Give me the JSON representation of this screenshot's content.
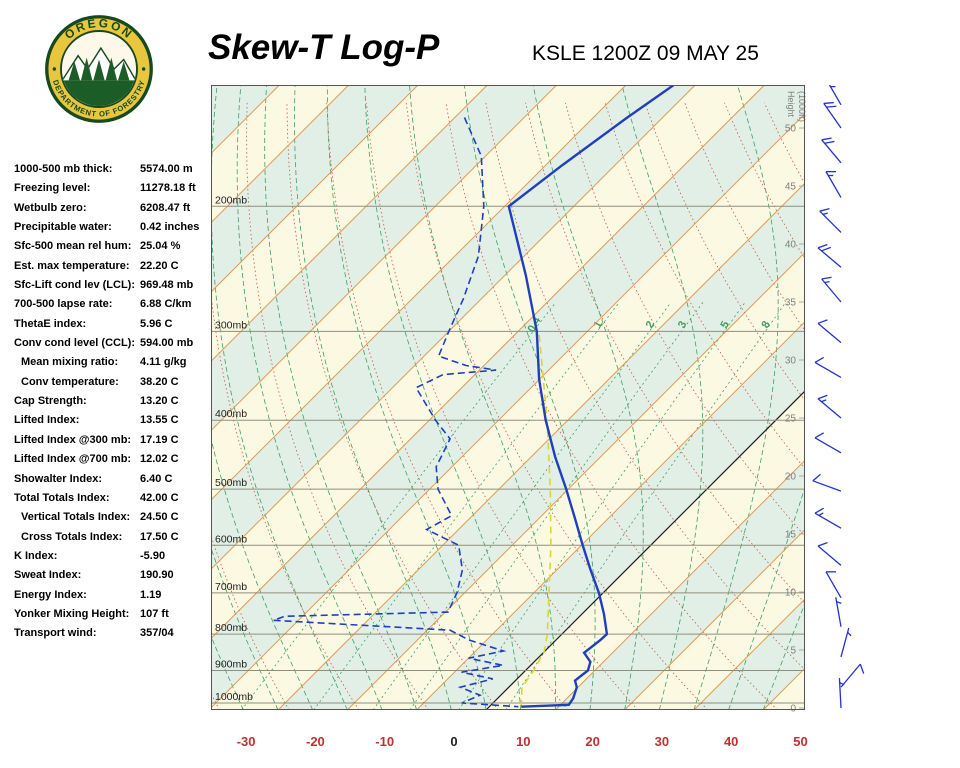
{
  "header": {
    "title": "Skew-T Log-P",
    "station_line": "KSLE 1200Z 09 MAY 25",
    "logo": {
      "top_text": "OREGON",
      "bottom_text": "DEPARTMENT OF FORESTRY"
    }
  },
  "indices": [
    {
      "label": "1000-500 mb thick:",
      "value": "5574.00 m",
      "indent": false
    },
    {
      "label": "Freezing level:",
      "value": "11278.18 ft",
      "indent": false
    },
    {
      "label": "Wetbulb zero:",
      "value": "6208.47 ft",
      "indent": false
    },
    {
      "label": "Precipitable water:",
      "value": "0.42 inches",
      "indent": false
    },
    {
      "label": "Sfc-500 mean rel hum:",
      "value": "25.04 %",
      "indent": false
    },
    {
      "label": "Est. max temperature:",
      "value": "22.20 C",
      "indent": false
    },
    {
      "label": "Sfc-Lift cond lev (LCL):",
      "value": "969.48 mb",
      "indent": false
    },
    {
      "label": "700-500 lapse rate:",
      "value": "6.88 C/km",
      "indent": false
    },
    {
      "label": "ThetaE index:",
      "value": "5.96 C",
      "indent": false
    },
    {
      "label": "Conv cond level (CCL):",
      "value": "594.00 mb",
      "indent": false
    },
    {
      "label": "Mean mixing ratio:",
      "value": "4.11 g/kg",
      "indent": true
    },
    {
      "label": "Conv temperature:",
      "value": "38.20 C",
      "indent": true
    },
    {
      "label": "Cap Strength:",
      "value": "13.20 C",
      "indent": false
    },
    {
      "label": "Lifted Index:",
      "value": "13.55 C",
      "indent": false
    },
    {
      "label": "Lifted Index @300 mb:",
      "value": "17.19 C",
      "indent": false
    },
    {
      "label": "Lifted Index @700 mb:",
      "value": "12.02 C",
      "indent": false
    },
    {
      "label": "Showalter Index:",
      "value": "6.40 C",
      "indent": false
    },
    {
      "label": "Total Totals Index:",
      "value": "42.00 C",
      "indent": false
    },
    {
      "label": "Vertical Totals Index:",
      "value": "24.50 C",
      "indent": true
    },
    {
      "label": "Cross Totals Index:",
      "value": "17.50 C",
      "indent": true
    },
    {
      "label": "K Index:",
      "value": "-5.90",
      "indent": false
    },
    {
      "label": "Sweat Index:",
      "value": "190.90",
      "indent": false
    },
    {
      "label": "Energy Index:",
      "value": "1.19",
      "indent": false
    },
    {
      "label": "Yonker Mixing Height:",
      "value": "107 ft",
      "indent": false
    },
    {
      "label": "Transport wind:",
      "value": "357/04",
      "indent": false
    }
  ],
  "chart_data": {
    "type": "skew-t",
    "title": "Skew-T Log-P",
    "station": "KSLE 1200Z 09 MAY 25",
    "pressure_range": [
      135,
      1023
    ],
    "pressure_axis": {
      "unit": "mb",
      "labels": [
        200,
        300,
        400,
        500,
        600,
        700,
        800,
        900,
        1000
      ]
    },
    "temp_axis": {
      "unit": "C",
      "labels": [
        -30,
        -20,
        -10,
        0,
        10,
        20,
        30,
        40,
        50
      ]
    },
    "height_axis": {
      "unit": "1000 ft",
      "title_line1": "Height",
      "title_line2": "(1000ft)",
      "labels": [
        0,
        5,
        10,
        15,
        20,
        25,
        30,
        35,
        40,
        45,
        50
      ]
    },
    "mixing_ratio_labels": [
      "0.4",
      "1",
      "2",
      "3",
      "5",
      "8"
    ],
    "temperature_profile": [
      [
        135,
        -63.1
      ],
      [
        150,
        -65.1
      ],
      [
        175,
        -67.6
      ],
      [
        200,
        -69.4
      ],
      [
        250,
        -57.0
      ],
      [
        300,
        -47.3
      ],
      [
        350,
        -40.1
      ],
      [
        400,
        -33.2
      ],
      [
        450,
        -26.6
      ],
      [
        500,
        -20.3
      ],
      [
        550,
        -14.8
      ],
      [
        600,
        -9.8
      ],
      [
        650,
        -5.1
      ],
      [
        700,
        -0.6
      ],
      [
        750,
        3.2
      ],
      [
        800,
        6.5
      ],
      [
        815,
        6.4
      ],
      [
        850,
        5.9
      ],
      [
        875,
        8.1
      ],
      [
        900,
        9.0
      ],
      [
        930,
        8.6
      ],
      [
        950,
        9.8
      ],
      [
        985,
        10.9
      ],
      [
        1006,
        11.2
      ],
      [
        1012,
        4.6
      ]
    ],
    "dewpoint_profile": [
      [
        150,
        -88.6
      ],
      [
        170,
        -80.6
      ],
      [
        200,
        -73.0
      ],
      [
        235,
        -66.6
      ],
      [
        270,
        -62.6
      ],
      [
        300,
        -60.0
      ],
      [
        325,
        -57.9
      ],
      [
        335,
        -52.6
      ],
      [
        340,
        -47.6
      ],
      [
        345,
        -54.6
      ],
      [
        360,
        -56.6
      ],
      [
        400,
        -49.1
      ],
      [
        425,
        -44.3
      ],
      [
        465,
        -42.3
      ],
      [
        500,
        -38.8
      ],
      [
        545,
        -33.0
      ],
      [
        570,
        -34.6
      ],
      [
        600,
        -27.7
      ],
      [
        650,
        -23.6
      ],
      [
        700,
        -21.1
      ],
      [
        745,
        -19.6
      ],
      [
        755,
        -42.6
      ],
      [
        765,
        -43.6
      ],
      [
        790,
        -16.7
      ],
      [
        815,
        -12.6
      ],
      [
        845,
        -6.0
      ],
      [
        865,
        -10.0
      ],
      [
        885,
        -4.0
      ],
      [
        905,
        -9.0
      ],
      [
        925,
        -3.5
      ],
      [
        950,
        -7.0
      ],
      [
        975,
        -3.0
      ],
      [
        1000,
        -4.5
      ],
      [
        1012,
        4.2
      ]
    ],
    "parcel_profile": [
      [
        1012,
        4.6
      ],
      [
        950,
        1.9
      ],
      [
        900,
        1.2
      ],
      [
        845,
        -0.1
      ],
      [
        800,
        -2.1
      ],
      [
        700,
        -7.8
      ],
      [
        600,
        -14.4
      ],
      [
        500,
        -22.6
      ],
      [
        400,
        -33.0
      ],
      [
        300,
        -47.0
      ]
    ],
    "wind_barbs": [
      {
        "alt_kft": 52.0,
        "dir": 330,
        "spd": 25
      },
      {
        "alt_kft": 50.0,
        "dir": 325,
        "spd": 20
      },
      {
        "alt_kft": 47.0,
        "dir": 320,
        "spd": 20
      },
      {
        "alt_kft": 44.0,
        "dir": 330,
        "spd": 15
      },
      {
        "alt_kft": 41.0,
        "dir": 315,
        "spd": 15
      },
      {
        "alt_kft": 38.0,
        "dir": 310,
        "spd": 20
      },
      {
        "alt_kft": 35.0,
        "dir": 320,
        "spd": 15
      },
      {
        "alt_kft": 31.5,
        "dir": 310,
        "spd": 10
      },
      {
        "alt_kft": 28.5,
        "dir": 300,
        "spd": 10
      },
      {
        "alt_kft": 25.0,
        "dir": 310,
        "spd": 15
      },
      {
        "alt_kft": 22.0,
        "dir": 300,
        "spd": 10
      },
      {
        "alt_kft": 18.7,
        "dir": 290,
        "spd": 10
      },
      {
        "alt_kft": 15.5,
        "dir": 300,
        "spd": 15
      },
      {
        "alt_kft": 12.3,
        "dir": 310,
        "spd": 10
      },
      {
        "alt_kft": 9.5,
        "dir": 330,
        "spd": 10
      },
      {
        "alt_kft": 7.0,
        "dir": 350,
        "spd": 5
      },
      {
        "alt_kft": 4.4,
        "dir": 15,
        "spd": 5
      },
      {
        "alt_kft": 1.8,
        "dir": 40,
        "spd": 8
      },
      {
        "alt_kft": 0.0,
        "dir": 357,
        "spd": 4
      }
    ],
    "colors": {
      "temperature": "#1f3fbe",
      "dewpoint": "#1f3fbe",
      "parcel": "#ddd435",
      "isotherm": "#e09a50",
      "dry_adiabat": "#c25b45",
      "moist_adiabat": "#3f9f5f",
      "mixing_ratio": "#3f9f5f",
      "band_a": "#fcf9e3",
      "band_b": "#e2efe7",
      "pressure_line": "#8f8f7c",
      "axis_label_red": "#c03030",
      "wind_barb": "#2233cc",
      "zero_isotherm": "#222222",
      "height_label": "#808080",
      "border": "#555555"
    }
  }
}
